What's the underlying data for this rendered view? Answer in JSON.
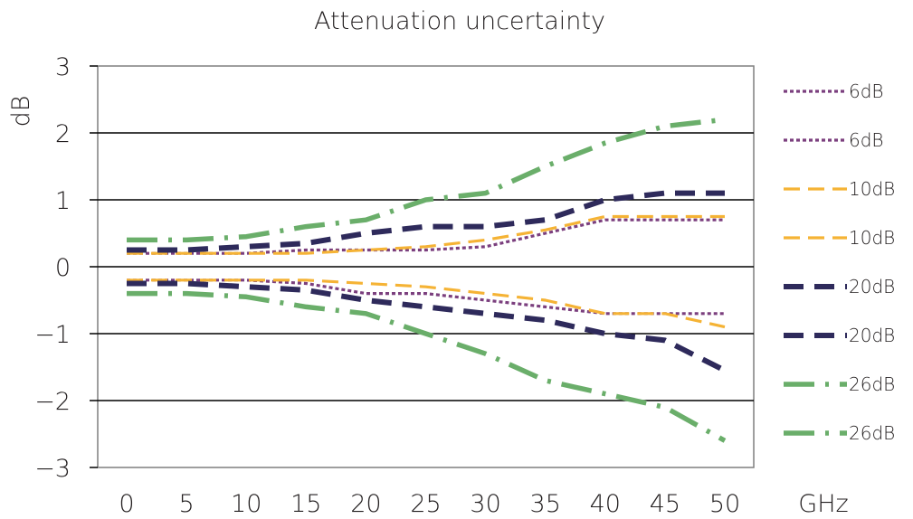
{
  "chart_data": {
    "type": "line",
    "title": "Attenuation uncertainty",
    "ylabel": "dB",
    "xunit": "GHz",
    "x": [
      0,
      5,
      10,
      15,
      20,
      25,
      30,
      35,
      40,
      45,
      50
    ],
    "x_tick_labels": [
      "0",
      "5",
      "10",
      "15",
      "20",
      "25",
      "30",
      "35",
      "40",
      "45",
      "50"
    ],
    "y_ticks": [
      3,
      2,
      1,
      0,
      -1,
      -2,
      -3
    ],
    "y_tick_labels": [
      "3",
      "2",
      "1",
      "0",
      "−1",
      "−2",
      "−3"
    ],
    "xlim": [
      0,
      50
    ],
    "ylim": [
      -3,
      3
    ],
    "grid": "horizontal",
    "legend_position": "right",
    "series": [
      {
        "name": "6dB",
        "color": "#7b3f7e",
        "style": "dotted",
        "values": [
          0.2,
          0.2,
          0.2,
          0.25,
          0.25,
          0.25,
          0.3,
          0.5,
          0.7,
          0.7,
          0.7
        ]
      },
      {
        "name": "6dB",
        "color": "#7b3f7e",
        "style": "dotted",
        "values": [
          -0.2,
          -0.2,
          -0.2,
          -0.25,
          -0.4,
          -0.4,
          -0.5,
          -0.6,
          -0.7,
          -0.7,
          -0.7
        ]
      },
      {
        "name": "10dB",
        "color": "#f5b335",
        "style": "dashed",
        "values": [
          0.2,
          0.2,
          0.2,
          0.2,
          0.25,
          0.3,
          0.4,
          0.55,
          0.75,
          0.75,
          0.75
        ]
      },
      {
        "name": "10dB",
        "color": "#f5b335",
        "style": "dashed",
        "values": [
          -0.2,
          -0.2,
          -0.2,
          -0.2,
          -0.25,
          -0.3,
          -0.4,
          -0.5,
          -0.7,
          -0.7,
          -0.9
        ]
      },
      {
        "name": "20dB",
        "color": "#2e2a5b",
        "style": "longdash",
        "values": [
          0.25,
          0.25,
          0.3,
          0.35,
          0.5,
          0.6,
          0.6,
          0.7,
          1.0,
          1.1,
          1.1
        ]
      },
      {
        "name": "20dB",
        "color": "#2e2a5b",
        "style": "longdash",
        "values": [
          -0.25,
          -0.25,
          -0.3,
          -0.35,
          -0.5,
          -0.6,
          -0.7,
          -0.8,
          -1.0,
          -1.1,
          -1.55
        ]
      },
      {
        "name": "26dB",
        "color": "#6aae6a",
        "style": "dashdot",
        "values": [
          0.4,
          0.4,
          0.45,
          0.6,
          0.7,
          1.0,
          1.1,
          1.5,
          1.85,
          2.1,
          2.2
        ]
      },
      {
        "name": "26dB",
        "color": "#6aae6a",
        "style": "dashdot",
        "values": [
          -0.4,
          -0.4,
          -0.45,
          -0.6,
          -0.7,
          -1.0,
          -1.3,
          -1.7,
          -1.9,
          -2.1,
          -2.6
        ]
      }
    ]
  }
}
